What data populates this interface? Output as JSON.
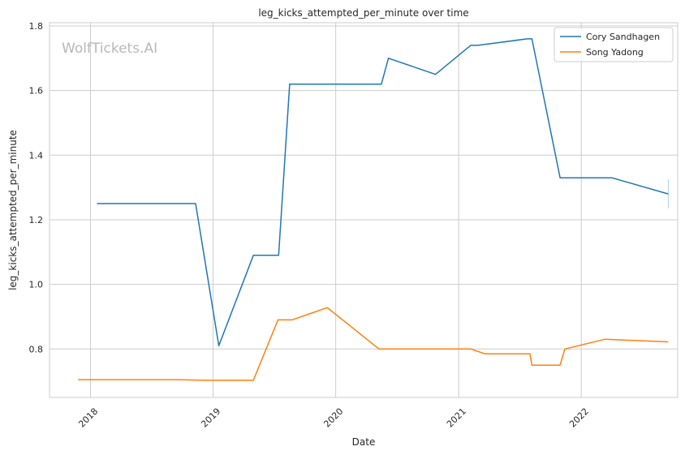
{
  "chart_data": {
    "type": "line",
    "title": "leg_kicks_attempted_per_minute over time",
    "xlabel": "Date",
    "ylabel": "leg_kicks_attempted_per_minute",
    "watermark": "WolfTickets.AI",
    "xlim": [
      "2017-09-01",
      "2022-10-15"
    ],
    "ylim": [
      0.65,
      1.81
    ],
    "x_ticks": [
      "2018-01-01",
      "2019-01-01",
      "2020-01-01",
      "2021-01-01",
      "2022-01-01"
    ],
    "x_tick_labels": [
      "2018",
      "2019",
      "2020",
      "2021",
      "2022"
    ],
    "y_ticks": [
      0.8,
      1.0,
      1.2,
      1.4,
      1.6,
      1.8
    ],
    "y_tick_labels": [
      "0.8",
      "1.0",
      "1.2",
      "1.4",
      "1.6",
      "1.8"
    ],
    "grid": true,
    "legend_position": "top-right",
    "series": [
      {
        "name": "Cory Sandhagen",
        "color": "#1f77b4",
        "points": [
          [
            "2018-01-20",
            1.25
          ],
          [
            "2018-11-10",
            1.25
          ],
          [
            "2019-01-18",
            0.81
          ],
          [
            "2019-05-01",
            1.09
          ],
          [
            "2019-07-15",
            1.09
          ],
          [
            "2019-08-17",
            1.62
          ],
          [
            "2020-05-16",
            1.62
          ],
          [
            "2020-06-06",
            1.7
          ],
          [
            "2020-10-24",
            1.65
          ],
          [
            "2021-02-06",
            1.74
          ],
          [
            "2021-02-27",
            1.74
          ],
          [
            "2021-07-24",
            1.76
          ],
          [
            "2021-08-07",
            1.76
          ],
          [
            "2021-10-30",
            1.33
          ],
          [
            "2022-04-02",
            1.33
          ],
          [
            "2022-09-17",
            1.28
          ]
        ]
      },
      {
        "name": "Song Yadong",
        "color": "#ff7f0e",
        "points": [
          [
            "2017-11-25",
            0.705
          ],
          [
            "2018-09-15",
            0.705
          ],
          [
            "2018-12-08",
            0.703
          ],
          [
            "2019-05-01",
            0.703
          ],
          [
            "2019-07-13",
            0.89
          ],
          [
            "2019-08-24",
            0.89
          ],
          [
            "2019-12-07",
            0.928
          ],
          [
            "2020-05-09",
            0.8
          ],
          [
            "2021-02-06",
            0.8
          ],
          [
            "2021-03-20",
            0.785
          ],
          [
            "2021-08-01",
            0.785
          ],
          [
            "2021-08-07",
            0.75
          ],
          [
            "2021-10-30",
            0.75
          ],
          [
            "2021-11-13",
            0.8
          ],
          [
            "2022-03-12",
            0.83
          ],
          [
            "2022-09-17",
            0.822
          ]
        ]
      }
    ]
  }
}
